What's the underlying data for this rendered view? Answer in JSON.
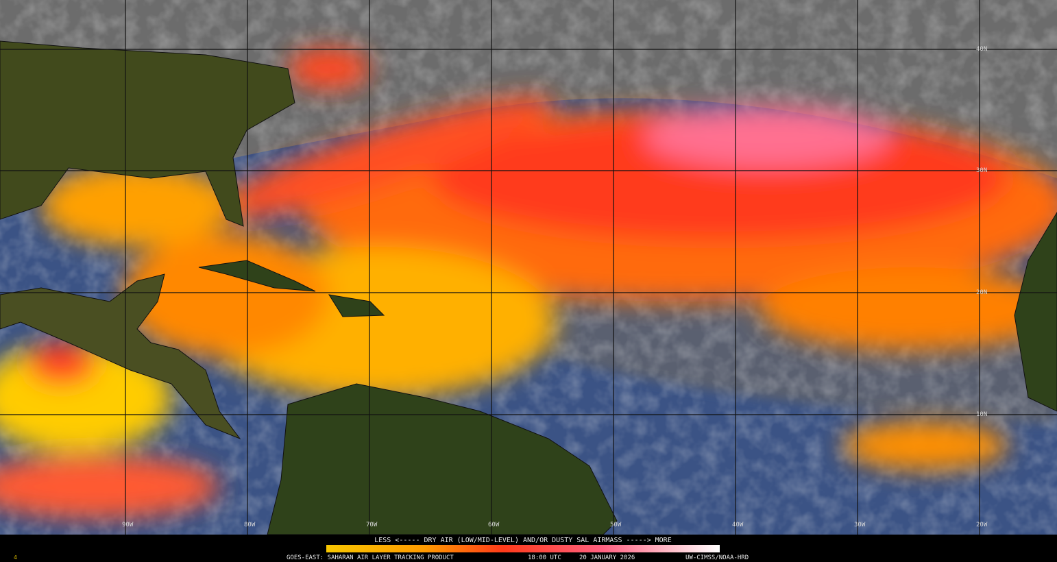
{
  "latitude_labels": [
    "40N",
    "30N",
    "20N",
    "10N"
  ],
  "longitude_labels": [
    "90W",
    "80W",
    "70W",
    "60W",
    "50W",
    "40W",
    "30W",
    "20W"
  ],
  "legend": {
    "caption": "LESS <----- DRY AIR (LOW/MID-LEVEL) AND/OR DUSTY SAL AIRMASS -----> MORE"
  },
  "footer": {
    "product": "GOES-EAST: SAHARAN AIR LAYER TRACKING PRODUCT",
    "time": "18:00 UTC",
    "date": "20 JANUARY 2026",
    "credit": "UW-CIMSS/NOAA-HRD",
    "corner_mark": "4"
  }
}
